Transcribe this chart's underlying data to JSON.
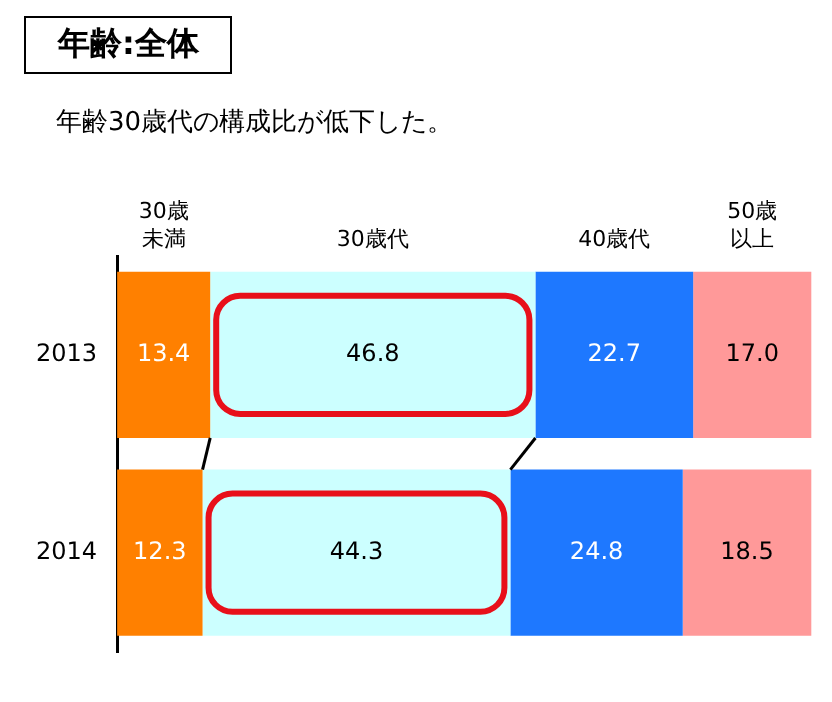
{
  "chart_data": {
    "type": "bar",
    "orientation": "horizontal",
    "stacked": true,
    "title": "年齢:全体",
    "subtitle": "年齢30歳代の構成比が低下した。",
    "categories": [
      "2013",
      "2014"
    ],
    "series": [
      {
        "name": "30歳未満",
        "color": "#ff8000",
        "values": [
          13.4,
          12.3
        ],
        "value_labels": [
          "13.4",
          "12.3"
        ]
      },
      {
        "name": "30歳代",
        "color": "#ccffff",
        "values": [
          46.8,
          44.3
        ],
        "value_labels": [
          "46.8",
          "44.3"
        ]
      },
      {
        "name": "40歳代",
        "color": "#1e78ff",
        "values": [
          22.7,
          24.8
        ],
        "value_labels": [
          "22.7",
          "24.8"
        ]
      },
      {
        "name": "50歳以上",
        "color": "#ff9999",
        "values": [
          17.0,
          18.5
        ],
        "value_labels": [
          "17.0",
          "18.5"
        ]
      }
    ],
    "xlim": [
      0,
      100
    ],
    "tick_labels": "y"
  }
}
